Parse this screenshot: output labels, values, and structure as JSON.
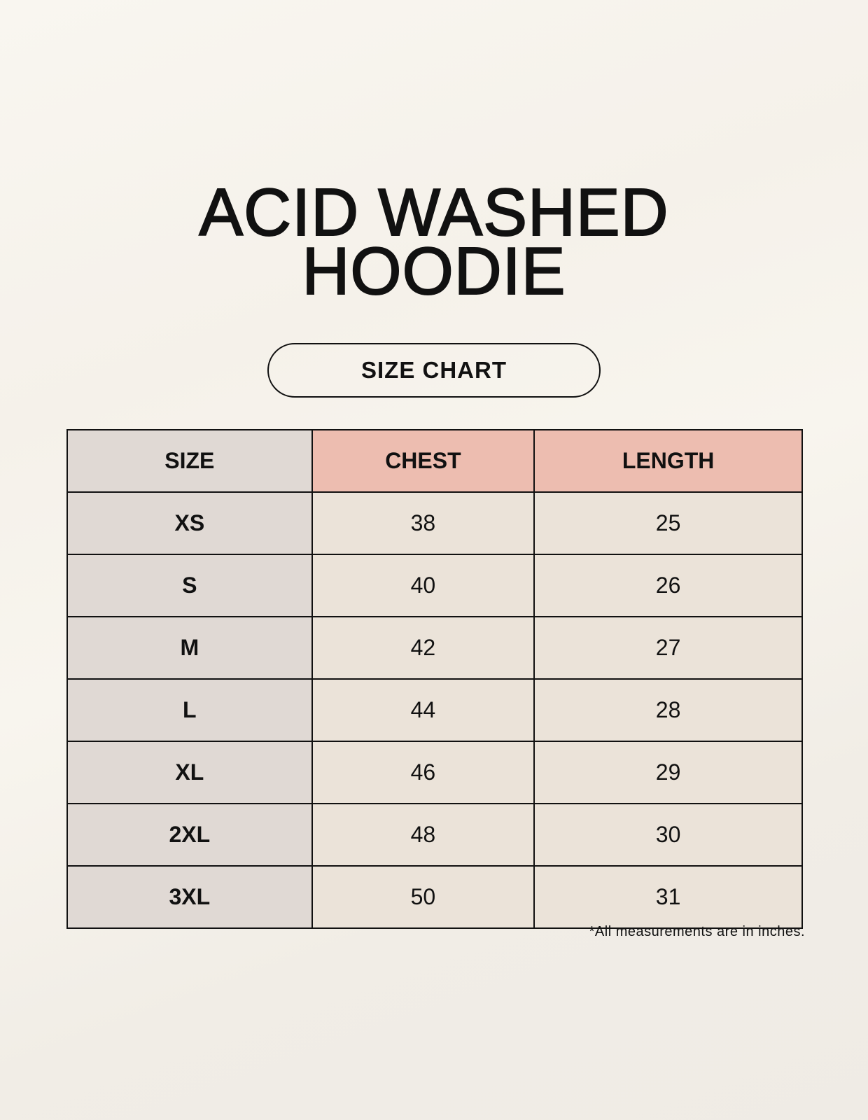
{
  "title": {
    "line1": "ACID WASHED",
    "line2": "HOODIE"
  },
  "badge": "SIZE CHART",
  "table": {
    "headers": [
      "SIZE",
      "CHEST",
      "LENGTH"
    ],
    "rows": [
      [
        "XS",
        "38",
        "25"
      ],
      [
        "S",
        "40",
        "26"
      ],
      [
        "M",
        "42",
        "27"
      ],
      [
        "L",
        "44",
        "28"
      ],
      [
        "XL",
        "46",
        "29"
      ],
      [
        "2XL",
        "48",
        "30"
      ],
      [
        "3XL",
        "50",
        "31"
      ]
    ]
  },
  "note": "*All measurements are in inches.",
  "colors": {
    "header_accent": "#edbdb0",
    "size_column": "#e0d9d4",
    "value_cells": "#ebe3d9"
  }
}
